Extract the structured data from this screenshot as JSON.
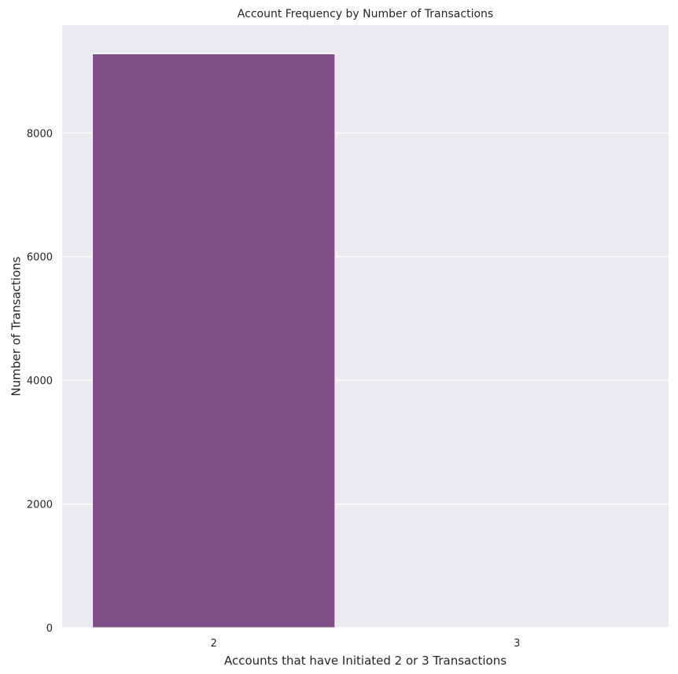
{
  "chart_data": {
    "type": "bar",
    "title": "Account Frequency by Number of Transactions",
    "xlabel": "Accounts that have Initiated 2 or 3 Transactions",
    "ylabel": "Number of Transactions",
    "categories": [
      "2",
      "3"
    ],
    "values": [
      9280,
      0
    ],
    "ylim": [
      0,
      9744
    ],
    "yticks": [
      0,
      2000,
      4000,
      6000,
      8000
    ],
    "ytick_labels": [
      "0",
      "2000",
      "4000",
      "6000",
      "8000"
    ],
    "grid": true,
    "legend": "none",
    "colors": {
      "bar": "#7f4f88",
      "plot_background": "#eaeaf2",
      "grid": "#ffffff",
      "text": "#262626"
    }
  }
}
